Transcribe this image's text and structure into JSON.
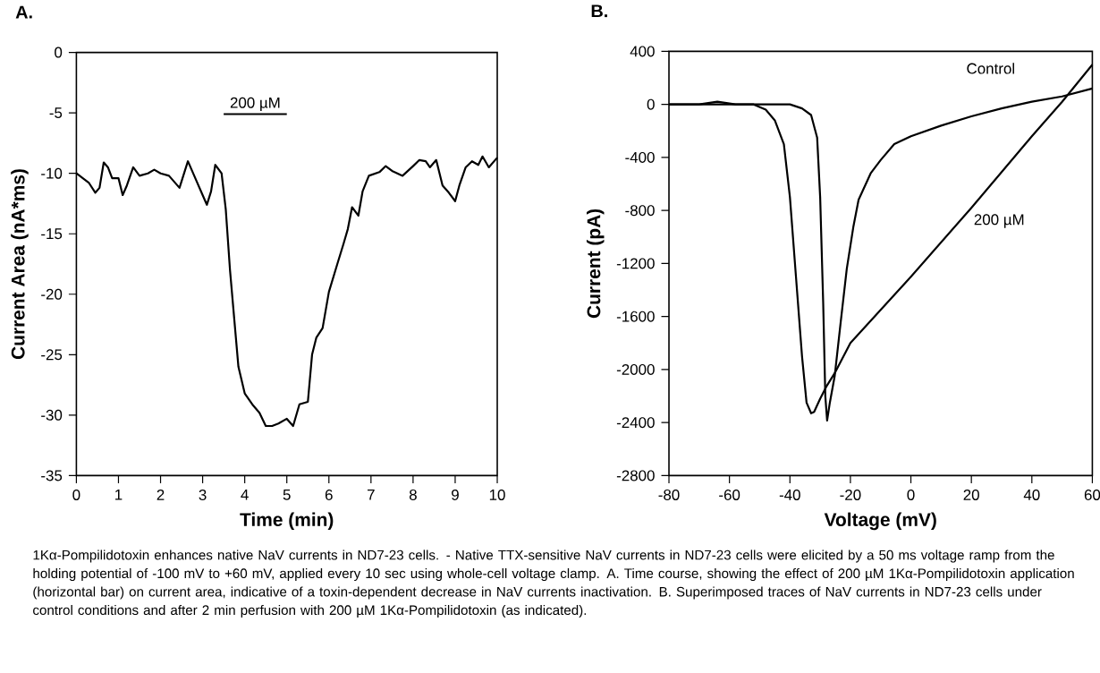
{
  "chart_data": [
    {
      "type": "line",
      "title": "A.",
      "xlabel": "Time (min)",
      "ylabel": "Current Area  (nA*ms)",
      "xlim": [
        0,
        10
      ],
      "ylim": [
        -35,
        0
      ],
      "xticks": [
        0,
        1,
        2,
        3,
        4,
        5,
        6,
        7,
        8,
        9,
        10
      ],
      "yticks": [
        -35,
        -30,
        -25,
        -20,
        -15,
        -10,
        -5,
        0
      ],
      "grid": false,
      "series": [
        {
          "color": "#000000",
          "x": [
            0,
            0.3,
            0.45,
            0.55,
            0.65,
            0.75,
            0.85,
            1.0,
            1.1,
            1.2,
            1.35,
            1.5,
            1.7,
            1.85,
            2.0,
            2.2,
            2.45,
            2.65,
            2.8,
            3.0,
            3.1,
            3.2,
            3.3,
            3.45,
            3.55,
            3.65,
            3.75,
            3.85,
            4.0,
            4.2,
            4.35,
            4.5,
            4.65,
            4.8,
            5.0,
            5.15,
            5.3,
            5.5,
            5.6,
            5.7,
            5.85,
            6.0,
            6.2,
            6.35,
            6.45,
            6.55,
            6.7,
            6.8,
            6.95,
            7.2,
            7.35,
            7.5,
            7.75,
            8.0,
            8.15,
            8.3,
            8.4,
            8.55,
            8.7,
            8.85,
            9.0,
            9.1,
            9.25,
            9.4,
            9.55,
            9.65,
            9.8,
            10
          ],
          "values": [
            -10,
            -10.8,
            -11.6,
            -11.2,
            -9.1,
            -9.5,
            -10.4,
            -10.4,
            -11.8,
            -11,
            -9.5,
            -10.2,
            -10,
            -9.7,
            -10,
            -10.2,
            -11.2,
            -9,
            -10.2,
            -11.8,
            -12.6,
            -11.5,
            -9.3,
            -10,
            -13,
            -18,
            -22,
            -26,
            -28.2,
            -29.2,
            -29.8,
            -30.9,
            -30.9,
            -30.7,
            -30.3,
            -30.9,
            -29.1,
            -28.9,
            -25,
            -23.6,
            -22.8,
            -19.8,
            -17.5,
            -15.8,
            -14.6,
            -12.8,
            -13.5,
            -11.5,
            -10.2,
            -9.9,
            -9.4,
            -9.8,
            -10.2,
            -9.4,
            -8.9,
            -9,
            -9.5,
            -8.9,
            -11,
            -11.6,
            -12.3,
            -11,
            -9.5,
            -9,
            -9.3,
            -8.6,
            -9.5,
            -8.7
          ]
        },
        {
          "type": "line",
          "color": "#000000",
          "x": [
            3.5,
            5
          ],
          "values": [
            -5.1,
            -5.1
          ]
        }
      ],
      "annotations": [
        {
          "text": "200 µM",
          "x": 4.25,
          "y": -5.1
        },
        "1Kα-Pompilidotoxin enhances native NaV currents in ND7-23 cells. - Native TTX-sensitive NaV currents in ND7-23 cells were elicited by a 50 ms voltage ramp from the holding potential of -100 mV to +60 mV, applied every 10 sec using whole-cell voltage clamp. A. Time course, showing the effect of 200 µM 1Kα-Pompilidotoxin application (horizontal bar) on current area, indicative of a toxin-dependent decrease in NaV currents inactivation. B. Superimposed traces of NaV currents in ND7-23 cells under control conditions and after 2 min perfusion with 200 µM 1Kα-Pompilidotoxin (as indicated)."
      ]
    },
    {
      "type": "line",
      "title": "B.",
      "xlabel": "Voltage (mV)",
      "ylabel": "Current (pA)",
      "xlim": [
        -80,
        60
      ],
      "ylim": [
        -2800,
        400
      ],
      "xticks": [
        -80,
        -60,
        -40,
        -20,
        0,
        20,
        40,
        60
      ],
      "yticks": [
        -2800,
        -2400,
        -2000,
        -1600,
        -1200,
        -800,
        -400,
        0,
        400
      ],
      "grid": false,
      "series": [
        {
          "color": "#000000",
          "x": [
            -80,
            -70,
            -64,
            -58,
            -50,
            -46,
            -43,
            -40,
            -36,
            -33,
            -31,
            -30,
            -29,
            -28.3,
            -27.7,
            -26.8,
            -25.2,
            -23.2,
            -21.2,
            -19,
            -17.3,
            -13.3,
            -10,
            -5.5,
            0,
            10,
            20,
            30,
            40,
            50,
            60
          ],
          "values": [
            0,
            0,
            20,
            0,
            0,
            0,
            0,
            0,
            -30,
            -80,
            -250,
            -700,
            -1500,
            -2200,
            -2385,
            -2250,
            -2050,
            -1640,
            -1240,
            -920,
            -720,
            -520,
            -420,
            -300,
            -240,
            -160,
            -90,
            -30,
            20,
            60,
            120
          ]
        },
        {
          "color": "#000000",
          "x": [
            -80,
            -70,
            -60,
            -52,
            -48,
            -45,
            -42,
            -40,
            -38,
            -36,
            -34.5,
            -33,
            -32,
            -30,
            -28,
            -25,
            -20,
            0,
            20,
            40,
            50,
            60
          ],
          "values": [
            0,
            0,
            0,
            0,
            -40,
            -120,
            -300,
            -700,
            -1300,
            -1900,
            -2250,
            -2330,
            -2320,
            -2220,
            -2130,
            -2020,
            -1800,
            -1300,
            -780,
            -240,
            20,
            300
          ]
        }
      ],
      "annotations": [
        "Control",
        "200 µM"
      ]
    }
  ]
}
